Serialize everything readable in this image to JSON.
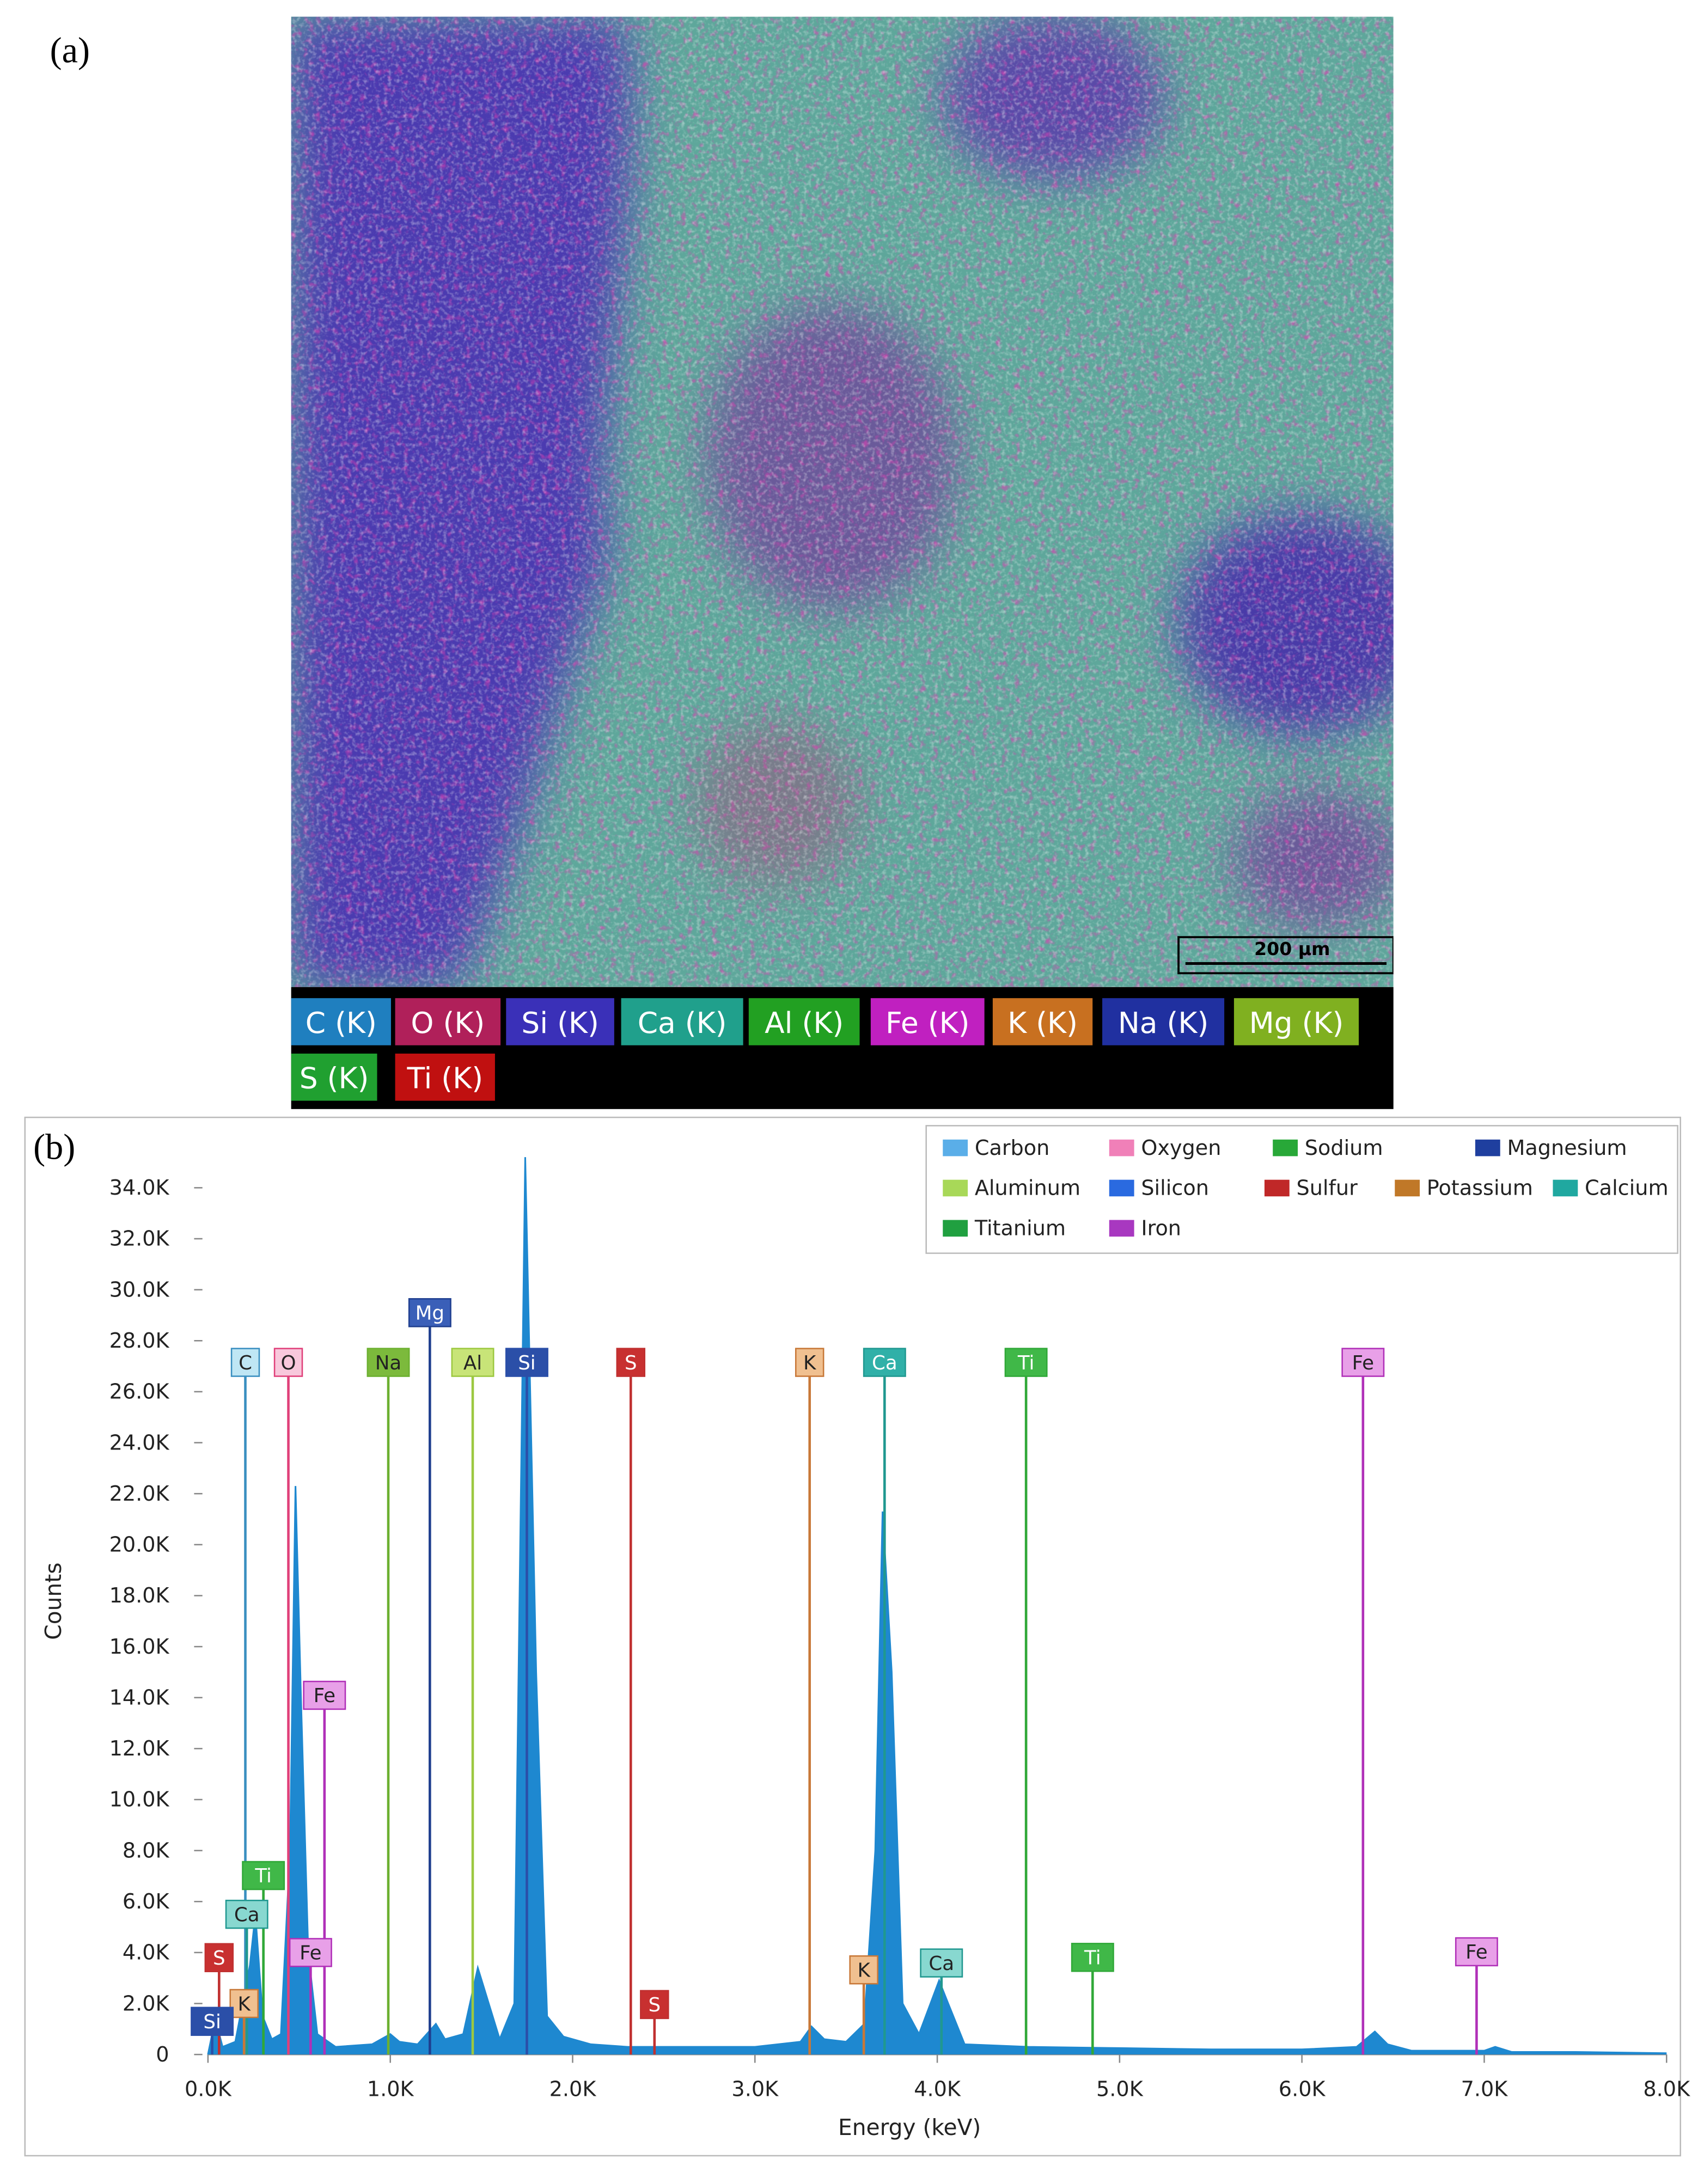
{
  "panel_a": {
    "label": "(a)",
    "scale_bar": "200 µm",
    "elements": [
      {
        "label": "C (K)",
        "color": "#1f7fbf"
      },
      {
        "label": "O (K)",
        "color": "#b0205a"
      },
      {
        "label": "Si (K)",
        "color": "#3a30b8"
      },
      {
        "label": "Ca (K)",
        "color": "#20a08c"
      },
      {
        "label": "Al (K)",
        "color": "#22a022"
      },
      {
        "label": "Fe (K)",
        "color": "#c020c0"
      },
      {
        "label": "K (K)",
        "color": "#c87020"
      },
      {
        "label": "Na (K)",
        "color": "#2030a0"
      },
      {
        "label": "Mg (K)",
        "color": "#80b020"
      },
      {
        "label": "S (K)",
        "color": "#20a030"
      },
      {
        "label": "Ti (K)",
        "color": "#c01010"
      }
    ]
  },
  "panel_b": {
    "label": "(b)"
  },
  "chart_data": {
    "type": "area",
    "x_label": "Energy (keV)",
    "y_label": "Counts",
    "color": "#1e88d0",
    "x": [
      0,
      40,
      80,
      150,
      230,
      260,
      300,
      350,
      400,
      450,
      480,
      510,
      550,
      600,
      700,
      900,
      1000,
      1050,
      1150,
      1250,
      1300,
      1400,
      1480,
      1540,
      1600,
      1680,
      1740,
      1800,
      1860,
      1950,
      2100,
      2300,
      2600,
      3000,
      3250,
      3310,
      3380,
      3500,
      3600,
      3660,
      3700,
      3750,
      3810,
      3900,
      4010,
      4060,
      4150,
      4500,
      5000,
      5500,
      6000,
      6300,
      6400,
      6470,
      6600,
      7000,
      7060,
      7150,
      7500,
      8000
    ],
    "values": [
      0,
      1400,
      300,
      500,
      3500,
      5500,
      1500,
      600,
      800,
      8000,
      22300,
      14000,
      4000,
      800,
      300,
      400,
      800,
      500,
      400,
      1200,
      600,
      800,
      3400,
      2000,
      600,
      2000,
      35200,
      15000,
      1500,
      700,
      400,
      300,
      300,
      300,
      500,
      1100,
      600,
      500,
      1200,
      8000,
      21300,
      15000,
      2000,
      800,
      2900,
      2000,
      400,
      300,
      250,
      200,
      200,
      300,
      900,
      400,
      150,
      150,
      300,
      100,
      100,
      50
    ],
    "xlim": [
      0,
      8000
    ],
    "ylim": [
      0,
      36000
    ],
    "xticks": [
      {
        "value": 0,
        "label": "0.0K"
      },
      {
        "value": 1000,
        "label": "1.0K"
      },
      {
        "value": 2000,
        "label": "2.0K"
      },
      {
        "value": 3000,
        "label": "3.0K"
      },
      {
        "value": 4000,
        "label": "4.0K"
      },
      {
        "value": 5000,
        "label": "5.0K"
      },
      {
        "value": 6000,
        "label": "6.0K"
      },
      {
        "value": 7000,
        "label": "7.0K"
      },
      {
        "value": 8000,
        "label": "8.0K"
      }
    ],
    "yticks": [
      0,
      {
        "value": 2000,
        "label": "2.0K"
      },
      {
        "value": 4000,
        "label": "4.0K"
      },
      {
        "value": 6000,
        "label": "6.0K"
      },
      {
        "value": 8000,
        "label": "8.0K"
      },
      {
        "value": 10000,
        "label": "10.0K"
      },
      {
        "value": 12000,
        "label": "12.0K"
      },
      {
        "value": 14000,
        "label": "14.0K"
      },
      {
        "value": 16000,
        "label": "16.0K"
      },
      {
        "value": 18000,
        "label": "18.0K"
      },
      {
        "value": 20000,
        "label": "20.0K"
      },
      {
        "value": 22000,
        "label": "22.0K"
      },
      {
        "value": 24000,
        "label": "24.0K"
      },
      {
        "value": 26000,
        "label": "26.0K"
      },
      {
        "value": 28000,
        "label": "28.0K"
      },
      {
        "value": 30000,
        "label": "30.0K"
      },
      {
        "value": 32000,
        "label": "32.0K"
      },
      {
        "value": 34000,
        "label": "34.0K"
      }
    ],
    "legend": [
      {
        "name": "Carbon",
        "color": "#5aaee8"
      },
      {
        "name": "Oxygen",
        "color": "#f080b8"
      },
      {
        "name": "Sodium",
        "color": "#28a838"
      },
      {
        "name": "Magnesium",
        "color": "#1f3f9f"
      },
      {
        "name": "Aluminum",
        "color": "#a8d858"
      },
      {
        "name": "Silicon",
        "color": "#2a6ae0"
      },
      {
        "name": "Sulfur",
        "color": "#c02828"
      },
      {
        "name": "Potassium",
        "color": "#c07828"
      },
      {
        "name": "Calcium",
        "color": "#20a8a0"
      },
      {
        "name": "Titanium",
        "color": "#20a040"
      },
      {
        "name": "Iron",
        "color": "#a838c0"
      }
    ],
    "markers": [
      {
        "element": "C",
        "x": 205,
        "y": 27150,
        "color": "#3a8fc0",
        "box": "#bfe6f4"
      },
      {
        "element": "O",
        "x": 441,
        "y": 27150,
        "color": "#e0407a",
        "box": "#f8c8dc"
      },
      {
        "element": "Na",
        "x": 989,
        "y": 27150,
        "color": "#6cb030",
        "box": "#7cba3c"
      },
      {
        "element": "Mg",
        "x": 1217,
        "y": 29100,
        "color": "#1f3f8f",
        "box": "#3a5fb8"
      },
      {
        "element": "Al",
        "x": 1452,
        "y": 27150,
        "color": "#9cc840",
        "box": "#c8e478"
      },
      {
        "element": "Si",
        "x": 1749,
        "y": 27150,
        "color": "#2b4fa8",
        "box": "#2b4fa8"
      },
      {
        "element": "S",
        "x": 2319,
        "y": 27150,
        "color": "#c03030",
        "box": "#c83030"
      },
      {
        "element": "K",
        "x": 3300,
        "y": 27150,
        "color": "#c87838",
        "box": "#f0c090"
      },
      {
        "element": "Ca",
        "x": 3711,
        "y": 27150,
        "color": "#209890",
        "box": "#30b0a8"
      },
      {
        "element": "Ti",
        "x": 4487,
        "y": 27150,
        "color": "#30a838",
        "box": "#40b848"
      },
      {
        "element": "Fe",
        "x": 6335,
        "y": 27150,
        "color": "#b030b8",
        "box": "#e8a0e8"
      },
      {
        "element": "Fe",
        "x": 639,
        "y": 14090,
        "color": "#b030b8",
        "box": "#e8a0e8"
      },
      {
        "element": "Ti",
        "x": 304,
        "y": 7020,
        "color": "#30a838",
        "box": "#40b848"
      },
      {
        "element": "Ca",
        "x": 213,
        "y": 5500,
        "color": "#209890",
        "box": "#88d8d0"
      },
      {
        "element": "S",
        "x": 61,
        "y": 3800,
        "color": "#c03030",
        "box": "#c83030"
      },
      {
        "element": "Fe",
        "x": 563,
        "y": 4000,
        "color": "#b030b8",
        "box": "#e8a0e8"
      },
      {
        "element": "K",
        "x": 198,
        "y": 2000,
        "color": "#c87838",
        "box": "#f0c090"
      },
      {
        "element": "Si",
        "x": 23,
        "y": 1300,
        "color": "#2b4fa8",
        "box": "#2b4fa8"
      },
      {
        "element": "S",
        "x": 2449,
        "y": 1960,
        "color": "#c03030",
        "box": "#c83030"
      },
      {
        "element": "K",
        "x": 3597,
        "y": 3320,
        "color": "#c87838",
        "box": "#f0c090"
      },
      {
        "element": "Ca",
        "x": 4023,
        "y": 3590,
        "color": "#209890",
        "box": "#88d8d0"
      },
      {
        "element": "Ti",
        "x": 4852,
        "y": 3810,
        "color": "#30a838",
        "box": "#40b848"
      },
      {
        "element": "Fe",
        "x": 6958,
        "y": 4030,
        "color": "#b030b8",
        "box": "#e8a0e8"
      }
    ]
  }
}
